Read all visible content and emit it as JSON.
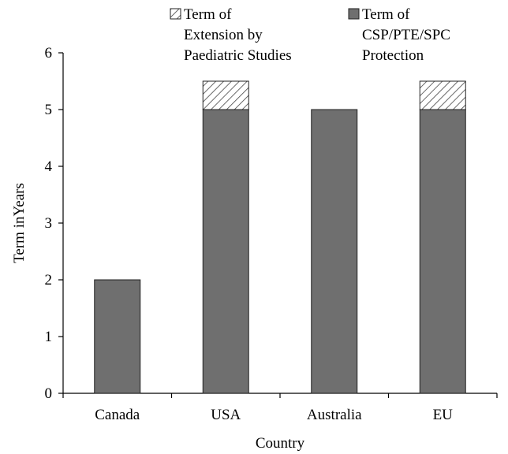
{
  "chart_data": {
    "type": "bar",
    "stacked": true,
    "xlabel": "Country",
    "ylabel": "Term inYears",
    "categories": [
      "Canada",
      "USA",
      "Australia",
      "EU"
    ],
    "ylim": [
      0,
      6
    ],
    "yticks": [
      "0",
      "1",
      "2",
      "3",
      "4",
      "5",
      "6"
    ],
    "grid": false,
    "legend_position": "top",
    "series": [
      {
        "name": "Term of CSP/PTE/SPC Protection",
        "name_lines": [
          "Term of",
          "CSP/PTE/SPC",
          "Protection"
        ],
        "values": [
          2,
          5,
          5,
          5
        ],
        "color": "#6f6f6f",
        "pattern": "solid"
      },
      {
        "name": "Term of Extension by Paediatric Studies",
        "name_lines": [
          "Term of",
          "Extension by",
          "Paediatric Studies"
        ],
        "values": [
          0,
          0.5,
          0,
          0.5
        ],
        "color": "#ffffff",
        "pattern": "hatch"
      }
    ]
  }
}
